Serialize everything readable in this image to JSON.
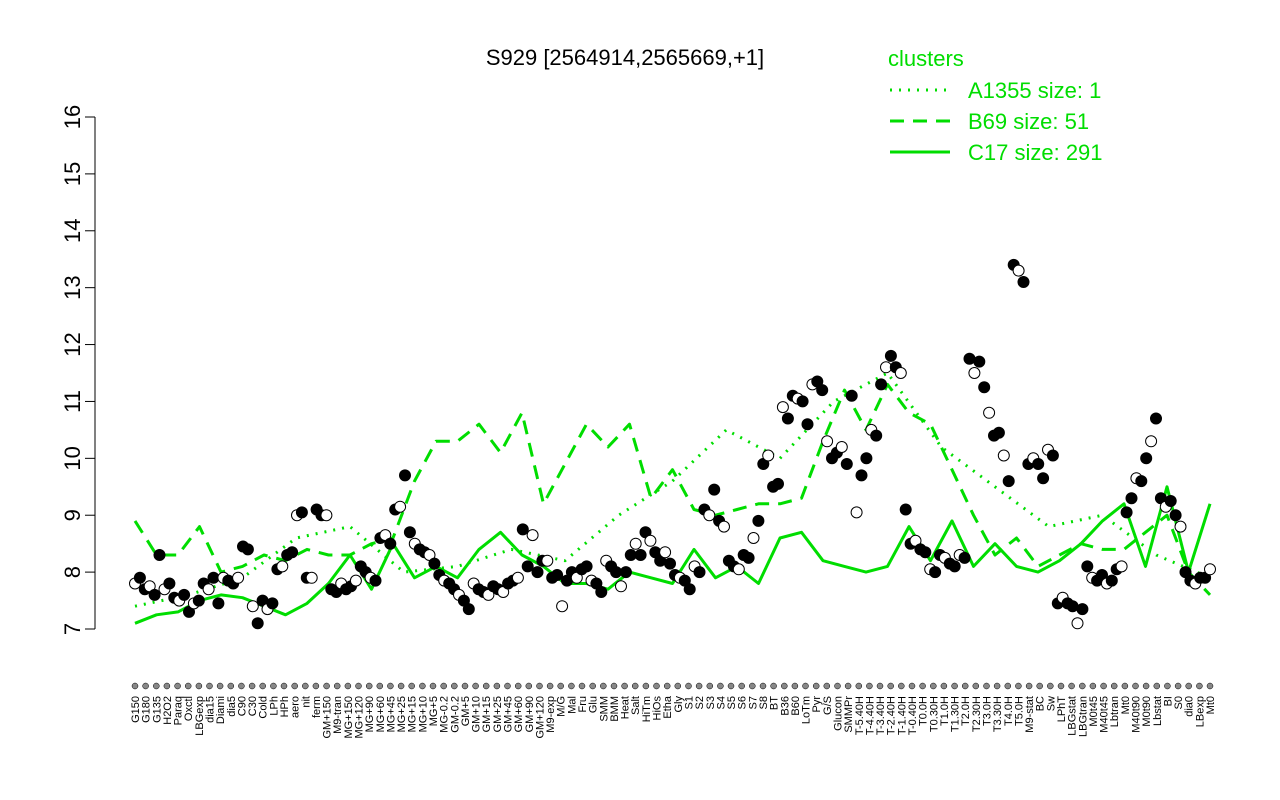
{
  "chart_data": {
    "type": "line",
    "title": "S929 [2564914,2565669,+1]",
    "xlabel": "",
    "ylabel": "",
    "ylim": [
      7,
      16
    ],
    "yticks": [
      7,
      8,
      9,
      10,
      11,
      12,
      13,
      14,
      15,
      16
    ],
    "accent_color": "#00dd00",
    "legend": {
      "title": "clusters",
      "placement": "top-right",
      "entries": [
        {
          "label": "A1355 size: 1",
          "style": "dotted"
        },
        {
          "label": "B69 size: 51",
          "style": "dashed"
        },
        {
          "label": "C17 size: 291",
          "style": "solid"
        }
      ]
    },
    "x_labels": [
      "G150",
      "G180",
      "G135",
      "H2O2",
      "Paraq",
      "Oxctl",
      "LBGexp",
      "dia15",
      "Diami",
      "dia5",
      "C90",
      "C30",
      "Cold",
      "LPh",
      "HPh",
      "aero",
      "nit",
      "ferm",
      "GM+150",
      "M9-tran",
      "MG+150",
      "MG+120",
      "MG+90",
      "MG+60",
      "MG+45",
      "MG+25",
      "MG+15",
      "MG+10",
      "MG+5",
      "MG-0.2",
      "GM-0.2",
      "GM+5",
      "GM+10",
      "GM+15",
      "GM+25",
      "GM+45",
      "GM+60",
      "GM+90",
      "GM+120",
      "M9-exp",
      "M/G",
      "Mal",
      "Fru",
      "Glu",
      "SMM",
      "BMM",
      "Heat",
      "Salt",
      "HiTm",
      "HiOs",
      "Etha",
      "Gly",
      "S1",
      "S2",
      "S3",
      "S4",
      "S5",
      "S6",
      "S7",
      "S8",
      "BT",
      "B36",
      "B60",
      "LoTm",
      "Pyr",
      "G/S",
      "Glucon",
      "SMMPr",
      "T-5.40H",
      "T-4.40H",
      "T-3.40H",
      "T-2.40H",
      "T-1.40H",
      "T-0.40H",
      "T0.0H",
      "T0.30H",
      "T1.0H",
      "T1.30H",
      "T2.0H",
      "T2.30H",
      "T3.0H",
      "T3.30H",
      "T4.0H",
      "T5.0H",
      "M9-stat",
      "BC",
      "Sw",
      "LPhT",
      "LBGstat",
      "LBGtran",
      "M0t45",
      "M40t45",
      "Lbtran",
      "Mt0",
      "M40t90",
      "M0t90",
      "Lbstat",
      "BI",
      "S0",
      "dia0",
      "LBexp",
      "Mt0"
    ],
    "series": [
      {
        "name": "C17 size: 291",
        "style": "solid",
        "x": [
          0,
          2,
          4,
          6,
          8,
          10,
          12,
          14,
          16,
          18,
          20,
          22,
          24,
          26,
          28,
          30,
          32,
          34,
          36,
          38,
          40,
          42,
          44,
          46,
          48,
          50,
          52,
          54,
          56,
          58,
          60,
          62,
          64,
          66,
          68,
          70,
          72,
          74,
          76,
          78,
          80,
          82,
          84,
          86,
          88,
          90,
          92,
          94,
          96,
          98,
          100
        ],
        "values": [
          7.1,
          7.25,
          7.3,
          7.5,
          7.6,
          7.55,
          7.4,
          7.25,
          7.45,
          7.8,
          8.3,
          7.7,
          8.5,
          7.9,
          8.1,
          7.9,
          8.4,
          8.7,
          8.3,
          8.1,
          7.8,
          7.8,
          7.7,
          8.0,
          7.9,
          7.8,
          8.4,
          7.9,
          8.1,
          7.8,
          8.6,
          8.7,
          8.2,
          8.1,
          8.0,
          8.1,
          8.8,
          8.2,
          8.9,
          8.1,
          8.5,
          8.1,
          8.0,
          8.2,
          8.5,
          8.9,
          9.2,
          8.1,
          9.5,
          8.0,
          9.2
        ]
      },
      {
        "name": "B69 size: 51",
        "style": "dashed",
        "x": [
          0,
          2,
          4,
          6,
          8,
          10,
          12,
          14,
          16,
          18,
          20,
          22,
          24,
          26,
          28,
          30,
          32,
          34,
          36,
          38,
          40,
          42,
          44,
          46,
          48,
          50,
          52,
          54,
          56,
          58,
          60,
          62,
          64,
          66,
          68,
          70,
          72,
          74,
          76,
          78,
          80,
          82,
          84,
          86,
          88,
          90,
          92,
          94,
          96,
          98,
          100
        ],
        "values": [
          8.9,
          8.3,
          8.3,
          8.8,
          8.0,
          8.1,
          8.3,
          8.2,
          8.4,
          8.3,
          8.3,
          8.5,
          8.6,
          9.6,
          10.3,
          10.3,
          10.6,
          10.1,
          10.8,
          9.2,
          9.9,
          10.6,
          10.2,
          10.6,
          9.3,
          9.8,
          9.1,
          9.0,
          9.1,
          9.2,
          9.2,
          9.3,
          10.3,
          11.2,
          10.5,
          11.3,
          10.8,
          10.6,
          9.8,
          9.0,
          8.3,
          8.6,
          8.1,
          8.3,
          8.5,
          8.4,
          8.4,
          8.7,
          9.0,
          8.0,
          7.6
        ]
      },
      {
        "name": "A1355 size: 1",
        "style": "dotted",
        "x": [
          0,
          5,
          10,
          15,
          20,
          25,
          30,
          35,
          40,
          45,
          50,
          55,
          60,
          65,
          70,
          75,
          80,
          85,
          90,
          95,
          100
        ],
        "values": [
          7.4,
          7.6,
          7.9,
          8.6,
          8.8,
          8.0,
          8.1,
          8.4,
          8.2,
          9.0,
          9.6,
          10.5,
          10.0,
          11.0,
          11.5,
          10.2,
          9.5,
          8.8,
          9.0,
          8.3,
          7.9
        ]
      }
    ],
    "points": [
      7.8,
      7.9,
      7.7,
      7.75,
      7.6,
      8.3,
      7.7,
      7.8,
      7.55,
      7.5,
      7.6,
      7.3,
      7.45,
      7.5,
      7.8,
      7.7,
      7.9,
      7.45,
      7.9,
      7.85,
      7.8,
      7.9,
      8.45,
      8.4,
      7.4,
      7.1,
      7.5,
      7.35,
      7.45,
      8.05,
      8.1,
      8.3,
      8.35,
      9.0,
      9.05,
      7.9,
      7.9,
      9.1,
      9.0,
      9.0,
      7.7,
      7.65,
      7.8,
      7.7,
      7.75,
      7.85,
      8.1,
      8.0,
      7.9,
      7.85,
      8.6,
      8.65,
      8.5,
      9.1,
      9.15,
      9.7,
      8.7,
      8.5,
      8.4,
      8.35,
      8.3,
      8.15,
      7.95,
      7.85,
      7.8,
      7.7,
      7.6,
      7.5,
      7.35,
      7.8,
      7.7,
      7.65,
      7.6,
      7.75,
      7.7,
      7.65,
      7.8,
      7.85,
      7.9,
      8.75,
      8.1,
      8.65,
      8.0,
      8.2,
      8.2,
      7.9,
      7.95,
      7.4,
      7.85,
      8.0,
      7.9,
      8.05,
      8.1,
      7.85,
      7.8,
      7.65,
      8.2,
      8.1,
      8.0,
      7.75,
      8.0,
      8.3,
      8.5,
      8.3,
      8.7,
      8.55,
      8.35,
      8.2,
      8.35,
      8.15,
      7.95,
      7.9,
      7.85,
      7.7,
      8.1,
      8.0,
      9.1,
      9.0,
      9.45,
      8.9,
      8.8,
      8.2,
      8.1,
      8.05,
      8.3,
      8.25,
      8.6,
      8.9,
      9.9,
      10.05,
      9.5,
      9.55,
      10.9,
      10.7,
      11.1,
      11.05,
      11.0,
      10.6,
      11.3,
      11.35,
      11.2,
      10.3,
      10.0,
      10.1,
      10.2,
      9.9,
      11.1,
      9.05,
      9.7,
      10.0,
      10.5,
      10.4,
      11.3,
      11.6,
      11.8,
      11.6,
      11.5,
      9.1,
      8.5,
      8.55,
      8.4,
      8.35,
      8.05,
      8.0,
      8.3,
      8.25,
      8.15,
      8.1,
      8.3,
      8.25,
      11.75,
      11.5,
      11.7,
      11.25,
      10.8,
      10.4,
      10.45,
      10.05,
      9.6,
      13.4,
      13.3,
      13.1,
      9.9,
      10.0,
      9.9,
      9.65,
      10.15,
      10.05,
      7.45,
      7.55,
      7.45,
      7.4,
      7.1,
      7.35,
      8.1,
      7.9,
      7.85,
      7.95,
      7.8,
      7.85,
      8.05,
      8.1,
      9.05,
      9.3,
      9.65,
      9.6,
      10.0,
      10.3,
      10.7,
      9.3,
      9.15,
      9.25,
      9.0,
      8.8,
      8.0,
      7.85,
      7.8,
      7.9,
      7.9,
      8.05
    ]
  }
}
